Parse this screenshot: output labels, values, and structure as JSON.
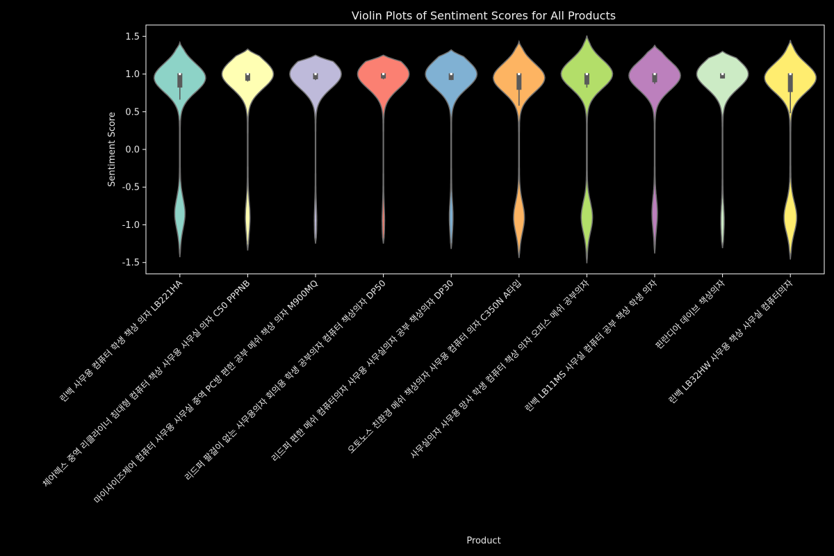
{
  "chart_data": {
    "type": "violin",
    "title": "Violin Plots of Sentiment Scores for All Products",
    "xlabel": "Product",
    "ylabel": "Sentiment Score",
    "ylim": [
      -1.65,
      1.65
    ],
    "yticks": [
      1.5,
      1.0,
      0.5,
      0.0,
      -0.5,
      -1.0,
      -1.5
    ],
    "ytick_labels": [
      "1.5",
      "1.0",
      "0.5",
      "0.0",
      "-0.5",
      "-1.0",
      "-1.5"
    ],
    "grid": false,
    "categories": [
      "린백 사무용 컴퓨터 학생 책상 의자 LB221HA",
      "체어렉스 중역 리클라이너 침대형 컴퓨터 책상 사무용 사무실 의자 C50 PPPNB",
      "마이사이즈체어 컴퓨터 사무용 사무실 중역 PC방 편한 공부 메쉬 책상 의자 M900MQ",
      "리드퍼 팔걸이 없는 사무용의자 회의용 학생 공부의자 컴퓨터 책상의자 DP50",
      "리드퍼 편한 메쉬 컴퓨터의자 사무용 사무실의자 공부 책상의자 DP30",
      "오토노스 친환경 메쉬 책상의자 사무용 컴퓨터 의자 C350N A타입",
      "사무실의자 사무용 망사 학생 컴퓨터 책상 의자 오피스 메쉬 공부의자",
      "린백 LB11MS 사무실 컴퓨터 공부 책상 학생 의자",
      "핀란디아 데이브 책상의자",
      "린백 LB32HW 사무용 책상 사무실 컴퓨터의자"
    ],
    "series": [
      {
        "color": "#8dd3c7",
        "min": -1.43,
        "max": 1.42,
        "q1": 0.83,
        "median": 1.0,
        "q3": 1.0,
        "whisker_low": 0.66,
        "whisker_high": 1.0,
        "upper_mode": 0.95,
        "upper_width": 0.95,
        "lower_mode": -0.85,
        "lower_width": 0.18
      },
      {
        "color": "#ffffb3",
        "min": -1.34,
        "max": 1.33,
        "q1": 0.92,
        "median": 1.0,
        "q3": 1.0,
        "whisker_low": 0.9,
        "whisker_high": 1.0,
        "upper_mode": 1.0,
        "upper_width": 1.0,
        "lower_mode": -0.9,
        "lower_width": 0.08
      },
      {
        "color": "#bebada",
        "min": -1.25,
        "max": 1.25,
        "q1": 0.94,
        "median": 1.0,
        "q3": 1.0,
        "whisker_low": 0.92,
        "whisker_high": 1.0,
        "upper_mode": 1.0,
        "upper_width": 1.3,
        "lower_mode": -0.95,
        "lower_width": 0.05
      },
      {
        "color": "#fb8072",
        "min": -1.25,
        "max": 1.25,
        "q1": 0.95,
        "median": 1.0,
        "q3": 1.0,
        "whisker_low": 0.93,
        "whisker_high": 1.0,
        "upper_mode": 1.0,
        "upper_width": 1.3,
        "lower_mode": -0.95,
        "lower_width": 0.05
      },
      {
        "color": "#80b1d3",
        "min": -1.32,
        "max": 1.32,
        "q1": 0.93,
        "median": 1.0,
        "q3": 1.0,
        "whisker_low": 0.92,
        "whisker_high": 1.0,
        "upper_mode": 1.0,
        "upper_width": 1.0,
        "lower_mode": -0.9,
        "lower_width": 0.06
      },
      {
        "color": "#fdb462",
        "min": -1.44,
        "max": 1.43,
        "q1": 0.8,
        "median": 1.0,
        "q3": 1.0,
        "whisker_low": 0.58,
        "whisker_high": 1.0,
        "upper_mode": 0.95,
        "upper_width": 0.85,
        "lower_mode": -0.9,
        "lower_width": 0.17
      },
      {
        "color": "#b3de69",
        "min": -1.51,
        "max": 1.51,
        "q1": 0.87,
        "median": 1.0,
        "q3": 1.0,
        "whisker_low": 0.82,
        "whisker_high": 1.0,
        "upper_mode": 1.0,
        "upper_width": 0.95,
        "lower_mode": -0.9,
        "lower_width": 0.2
      },
      {
        "color": "#bc80bd",
        "min": -1.38,
        "max": 1.38,
        "q1": 0.9,
        "median": 1.0,
        "q3": 1.0,
        "whisker_low": 0.87,
        "whisker_high": 1.0,
        "upper_mode": 0.98,
        "upper_width": 1.05,
        "lower_mode": -0.85,
        "lower_width": 0.1
      },
      {
        "color": "#ccebc5",
        "min": -1.31,
        "max": 1.3,
        "q1": 0.95,
        "median": 1.0,
        "q3": 1.0,
        "whisker_low": 0.94,
        "whisker_high": 1.0,
        "upper_mode": 1.0,
        "upper_width": 1.1,
        "lower_mode": -0.95,
        "lower_width": 0.06
      },
      {
        "color": "#ffed6f",
        "min": -1.46,
        "max": 1.45,
        "q1": 0.77,
        "median": 1.0,
        "q3": 1.0,
        "whisker_low": 0.48,
        "whisker_high": 1.0,
        "upper_mode": 0.95,
        "upper_width": 0.85,
        "lower_mode": -0.9,
        "lower_width": 0.2
      }
    ]
  }
}
